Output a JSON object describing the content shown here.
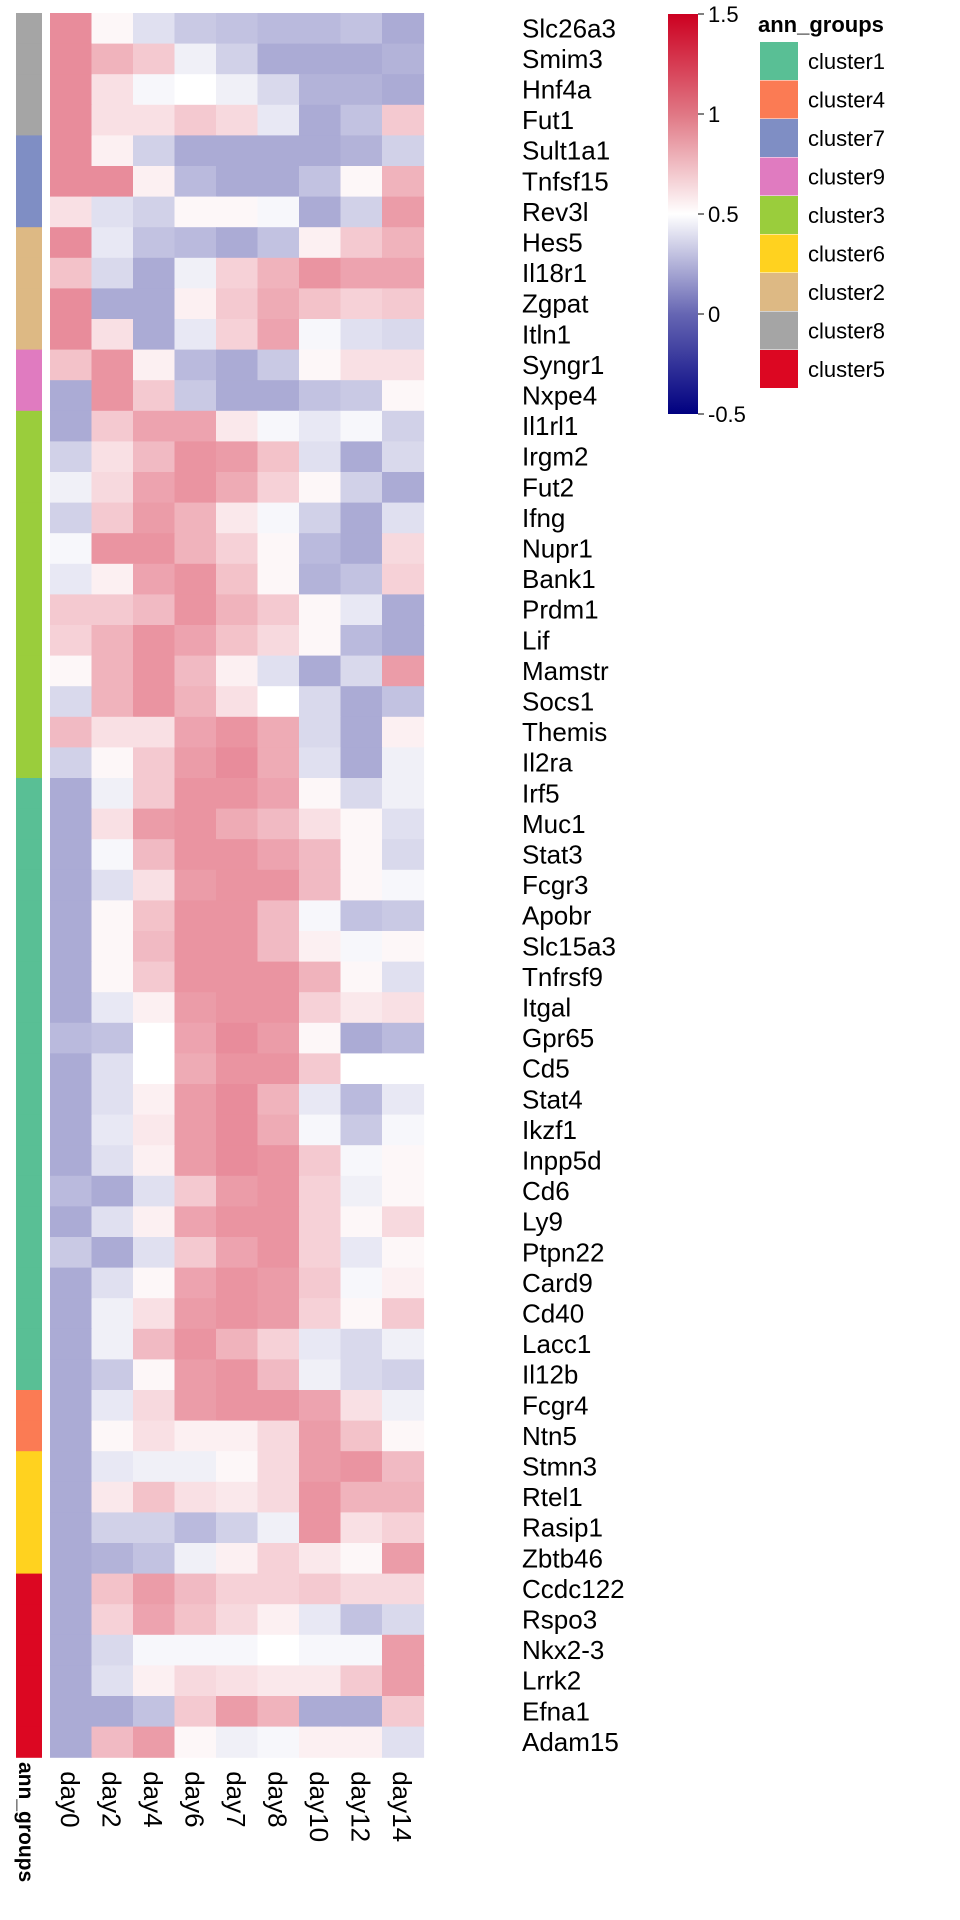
{
  "chart_data": {
    "type": "heatmap",
    "columns": [
      "day0",
      "day2",
      "day4",
      "day6",
      "day7",
      "day8",
      "day10",
      "day12",
      "day14"
    ],
    "rows": [
      {
        "gene": "Slc26a3",
        "group": "cluster8",
        "values": [
          1.25,
          0.55,
          0.3,
          0.15,
          0.1,
          0.05,
          0.05,
          0.1,
          -0.05
        ]
      },
      {
        "gene": "Smim3",
        "group": "cluster8",
        "values": [
          1.25,
          1.0,
          0.85,
          0.4,
          0.2,
          -0.05,
          -0.05,
          -0.05,
          0.0
        ]
      },
      {
        "gene": "Hnf4a",
        "group": "cluster8",
        "values": [
          1.25,
          0.7,
          0.45,
          0.5,
          0.4,
          0.25,
          0.0,
          0.0,
          -0.05
        ]
      },
      {
        "gene": "Fut1",
        "group": "cluster8",
        "values": [
          1.25,
          0.7,
          0.7,
          0.85,
          0.75,
          0.35,
          -0.05,
          0.1,
          0.85
        ]
      },
      {
        "gene": "Sult1a1",
        "group": "cluster7",
        "values": [
          1.25,
          0.6,
          0.2,
          -0.05,
          -0.05,
          -0.05,
          -0.05,
          0.0,
          0.2
        ]
      },
      {
        "gene": "Tnfsf15",
        "group": "cluster7",
        "values": [
          1.25,
          1.25,
          0.6,
          0.05,
          -0.05,
          -0.05,
          0.1,
          0.55,
          1.0
        ]
      },
      {
        "gene": "Rev3l",
        "group": "cluster7",
        "values": [
          0.7,
          0.3,
          0.2,
          0.55,
          0.55,
          0.45,
          -0.05,
          0.2,
          1.15
        ]
      },
      {
        "gene": "Hes5",
        "group": "cluster2",
        "values": [
          1.25,
          0.35,
          0.1,
          0.05,
          -0.05,
          0.1,
          0.6,
          0.85,
          1.0
        ]
      },
      {
        "gene": "Il18r1",
        "group": "cluster2",
        "values": [
          0.9,
          0.25,
          -0.05,
          0.4,
          0.8,
          1.0,
          1.2,
          1.1,
          1.1
        ]
      },
      {
        "gene": "Zgpat",
        "group": "cluster2",
        "values": [
          1.25,
          -0.05,
          -0.05,
          0.6,
          0.85,
          1.05,
          0.9,
          0.8,
          0.85
        ]
      },
      {
        "gene": "Itln1",
        "group": "cluster2",
        "values": [
          1.25,
          0.7,
          -0.05,
          0.35,
          0.8,
          1.1,
          0.45,
          0.3,
          0.25
        ]
      },
      {
        "gene": "Syngr1",
        "group": "cluster9",
        "values": [
          0.9,
          1.2,
          0.6,
          0.05,
          -0.05,
          0.15,
          0.55,
          0.7,
          0.7
        ]
      },
      {
        "gene": "Nxpe4",
        "group": "cluster9",
        "values": [
          -0.05,
          1.2,
          0.85,
          0.15,
          -0.05,
          -0.05,
          0.1,
          0.15,
          0.55
        ]
      },
      {
        "gene": "Il1rl1",
        "group": "cluster3",
        "values": [
          -0.05,
          0.85,
          1.1,
          1.1,
          0.65,
          0.45,
          0.35,
          0.45,
          0.2
        ]
      },
      {
        "gene": "Irgm2",
        "group": "cluster3",
        "values": [
          0.2,
          0.7,
          0.95,
          1.2,
          1.15,
          0.9,
          0.3,
          -0.05,
          0.25
        ]
      },
      {
        "gene": "Fut2",
        "group": "cluster3",
        "values": [
          0.4,
          0.75,
          1.1,
          1.2,
          1.05,
          0.8,
          0.55,
          0.2,
          -0.05
        ]
      },
      {
        "gene": "Ifng",
        "group": "cluster3",
        "values": [
          0.2,
          0.85,
          1.15,
          1.0,
          0.65,
          0.45,
          0.2,
          -0.05,
          0.3
        ]
      },
      {
        "gene": "Nupr1",
        "group": "cluster3",
        "values": [
          0.45,
          1.2,
          1.2,
          1.0,
          0.8,
          0.55,
          0.05,
          -0.05,
          0.75
        ]
      },
      {
        "gene": "Bank1",
        "group": "cluster3",
        "values": [
          0.35,
          0.6,
          1.1,
          1.2,
          0.9,
          0.55,
          0.0,
          0.1,
          0.8
        ]
      },
      {
        "gene": "Prdm1",
        "group": "cluster3",
        "values": [
          0.85,
          0.85,
          0.95,
          1.2,
          1.0,
          0.85,
          0.55,
          0.35,
          -0.05
        ]
      },
      {
        "gene": "Lif",
        "group": "cluster3",
        "values": [
          0.8,
          1.0,
          1.2,
          1.1,
          0.9,
          0.75,
          0.55,
          0.05,
          -0.05
        ]
      },
      {
        "gene": "Mamstr",
        "group": "cluster3",
        "values": [
          0.55,
          1.0,
          1.2,
          0.95,
          0.6,
          0.3,
          -0.05,
          0.25,
          1.15
        ]
      },
      {
        "gene": "Socs1",
        "group": "cluster3",
        "values": [
          0.25,
          1.0,
          1.2,
          1.0,
          0.7,
          0.5,
          0.25,
          -0.05,
          0.1
        ]
      },
      {
        "gene": "Themis",
        "group": "cluster3",
        "values": [
          0.95,
          0.7,
          0.7,
          1.1,
          1.2,
          1.05,
          0.25,
          -0.05,
          0.6
        ]
      },
      {
        "gene": "Il2ra",
        "group": "cluster3",
        "values": [
          0.2,
          0.55,
          0.85,
          1.15,
          1.25,
          1.05,
          0.3,
          -0.05,
          0.4
        ]
      },
      {
        "gene": "Irf5",
        "group": "cluster1",
        "values": [
          -0.05,
          0.4,
          0.85,
          1.2,
          1.2,
          1.1,
          0.55,
          0.25,
          0.4
        ]
      },
      {
        "gene": "Muc1",
        "group": "cluster1",
        "values": [
          -0.05,
          0.7,
          1.15,
          1.2,
          1.05,
          0.95,
          0.7,
          0.55,
          0.3
        ]
      },
      {
        "gene": "Stat3",
        "group": "cluster1",
        "values": [
          -0.05,
          0.45,
          0.95,
          1.2,
          1.2,
          1.1,
          0.95,
          0.55,
          0.25
        ]
      },
      {
        "gene": "Fcgr3",
        "group": "cluster1",
        "values": [
          -0.05,
          0.3,
          0.7,
          1.15,
          1.2,
          1.2,
          0.95,
          0.55,
          0.45
        ]
      },
      {
        "gene": "Apobr",
        "group": "cluster1",
        "values": [
          -0.05,
          0.55,
          0.9,
          1.2,
          1.2,
          0.95,
          0.45,
          0.1,
          0.15
        ]
      },
      {
        "gene": "Slc15a3",
        "group": "cluster1",
        "values": [
          -0.05,
          0.55,
          0.95,
          1.2,
          1.2,
          0.95,
          0.6,
          0.45,
          0.55
        ]
      },
      {
        "gene": "Tnfrsf9",
        "group": "cluster1",
        "values": [
          -0.05,
          0.55,
          0.85,
          1.2,
          1.2,
          1.2,
          1.0,
          0.55,
          0.3
        ]
      },
      {
        "gene": "Itgal",
        "group": "cluster1",
        "values": [
          -0.05,
          0.35,
          0.6,
          1.15,
          1.2,
          1.2,
          0.8,
          0.65,
          0.7
        ]
      },
      {
        "gene": "Gpr65",
        "group": "cluster1",
        "values": [
          0.05,
          0.1,
          0.5,
          1.1,
          1.25,
          1.15,
          0.55,
          -0.05,
          0.05
        ]
      },
      {
        "gene": "Cd5",
        "group": "cluster1",
        "values": [
          -0.05,
          0.3,
          0.5,
          1.05,
          1.2,
          1.2,
          0.85,
          0.5,
          0.5
        ]
      },
      {
        "gene": "Stat4",
        "group": "cluster1",
        "values": [
          -0.05,
          0.3,
          0.6,
          1.15,
          1.25,
          1.0,
          0.35,
          0.05,
          0.35
        ]
      },
      {
        "gene": "Ikzf1",
        "group": "cluster1",
        "values": [
          -0.05,
          0.35,
          0.65,
          1.15,
          1.25,
          1.05,
          0.45,
          0.15,
          0.45
        ]
      },
      {
        "gene": "Inpp5d",
        "group": "cluster1",
        "values": [
          -0.05,
          0.3,
          0.6,
          1.15,
          1.25,
          1.2,
          0.85,
          0.45,
          0.55
        ]
      },
      {
        "gene": "Cd6",
        "group": "cluster1",
        "values": [
          0.05,
          -0.05,
          0.3,
          0.85,
          1.15,
          1.2,
          0.8,
          0.4,
          0.55
        ]
      },
      {
        "gene": "Ly9",
        "group": "cluster1",
        "values": [
          -0.05,
          0.3,
          0.6,
          1.1,
          1.2,
          1.2,
          0.8,
          0.55,
          0.75
        ]
      },
      {
        "gene": "Ptpn22",
        "group": "cluster1",
        "values": [
          0.15,
          -0.05,
          0.3,
          0.85,
          1.1,
          1.2,
          0.8,
          0.35,
          0.55
        ]
      },
      {
        "gene": "Card9",
        "group": "cluster1",
        "values": [
          -0.05,
          0.3,
          0.55,
          1.1,
          1.2,
          1.15,
          0.85,
          0.45,
          0.6
        ]
      },
      {
        "gene": "Cd40",
        "group": "cluster1",
        "values": [
          -0.05,
          0.4,
          0.7,
          1.15,
          1.2,
          1.15,
          0.8,
          0.55,
          0.85
        ]
      },
      {
        "gene": "Lacc1",
        "group": "cluster1",
        "values": [
          -0.05,
          0.4,
          0.95,
          1.2,
          1.0,
          0.8,
          0.35,
          0.25,
          0.4
        ]
      },
      {
        "gene": "Il12b",
        "group": "cluster1",
        "values": [
          -0.05,
          0.15,
          0.55,
          1.15,
          1.2,
          0.95,
          0.4,
          0.25,
          0.2
        ]
      },
      {
        "gene": "Fcgr4",
        "group": "cluster4",
        "values": [
          -0.05,
          0.35,
          0.75,
          1.15,
          1.2,
          1.2,
          1.1,
          0.7,
          0.4
        ]
      },
      {
        "gene": "Ntn5",
        "group": "cluster4",
        "values": [
          -0.05,
          0.55,
          0.7,
          0.6,
          0.6,
          0.75,
          1.15,
          0.9,
          0.55
        ]
      },
      {
        "gene": "Stmn3",
        "group": "cluster6",
        "values": [
          -0.05,
          0.35,
          0.4,
          0.4,
          0.55,
          0.75,
          1.15,
          1.2,
          0.95
        ]
      },
      {
        "gene": "Rtel1",
        "group": "cluster6",
        "values": [
          -0.05,
          0.65,
          0.9,
          0.7,
          0.65,
          0.75,
          1.2,
          1.0,
          1.0
        ]
      },
      {
        "gene": "Rasip1",
        "group": "cluster6",
        "values": [
          -0.05,
          0.2,
          0.2,
          0.05,
          0.2,
          0.4,
          1.2,
          0.7,
          0.8
        ]
      },
      {
        "gene": "Zbtb46",
        "group": "cluster6",
        "values": [
          -0.05,
          0.0,
          0.1,
          0.4,
          0.6,
          0.8,
          0.65,
          0.55,
          1.15
        ]
      },
      {
        "gene": "Ccdc122",
        "group": "cluster5",
        "values": [
          -0.05,
          0.9,
          1.15,
          0.95,
          0.8,
          0.8,
          0.85,
          0.75,
          0.75
        ]
      },
      {
        "gene": "Rspo3",
        "group": "cluster5",
        "values": [
          -0.05,
          0.8,
          1.1,
          0.9,
          0.75,
          0.6,
          0.35,
          0.1,
          0.25
        ]
      },
      {
        "gene": "Nkx2-3",
        "group": "cluster5",
        "values": [
          -0.05,
          0.25,
          0.45,
          0.45,
          0.45,
          0.5,
          0.45,
          0.45,
          1.15
        ]
      },
      {
        "gene": "Lrrk2",
        "group": "cluster5",
        "values": [
          -0.05,
          0.3,
          0.6,
          0.75,
          0.7,
          0.65,
          0.65,
          0.85,
          1.15
        ]
      },
      {
        "gene": "Efna1",
        "group": "cluster5",
        "values": [
          -0.05,
          -0.05,
          0.1,
          0.85,
          1.15,
          1.0,
          -0.05,
          -0.05,
          0.85
        ]
      },
      {
        "gene": "Adam15",
        "group": "cluster5",
        "values": [
          -0.05,
          0.95,
          1.15,
          0.55,
          0.4,
          0.45,
          0.6,
          0.6,
          0.3
        ]
      }
    ],
    "color_scale": {
      "min": -0.5,
      "max": 1.5,
      "ticks": [
        1.5,
        1,
        0.5,
        0,
        -0.5
      ],
      "stops": [
        "#000080",
        "#ffffff",
        "#cc0020"
      ],
      "stop_values": [
        -0.5,
        0.5,
        1.5
      ]
    },
    "annotation": {
      "axis_label": "ann_groups",
      "legend_title": "ann_groups",
      "legend": [
        {
          "name": "cluster1",
          "color": "#59BF95"
        },
        {
          "name": "cluster4",
          "color": "#FB7B54"
        },
        {
          "name": "cluster7",
          "color": "#7F8EC4"
        },
        {
          "name": "cluster9",
          "color": "#E07BC0"
        },
        {
          "name": "cluster3",
          "color": "#9ACD3C"
        },
        {
          "name": "cluster6",
          "color": "#FFD21F"
        },
        {
          "name": "cluster2",
          "color": "#DDB984"
        },
        {
          "name": "cluster8",
          "color": "#A5A5A5"
        },
        {
          "name": "cluster5",
          "color": "#DC0722"
        }
      ]
    }
  }
}
